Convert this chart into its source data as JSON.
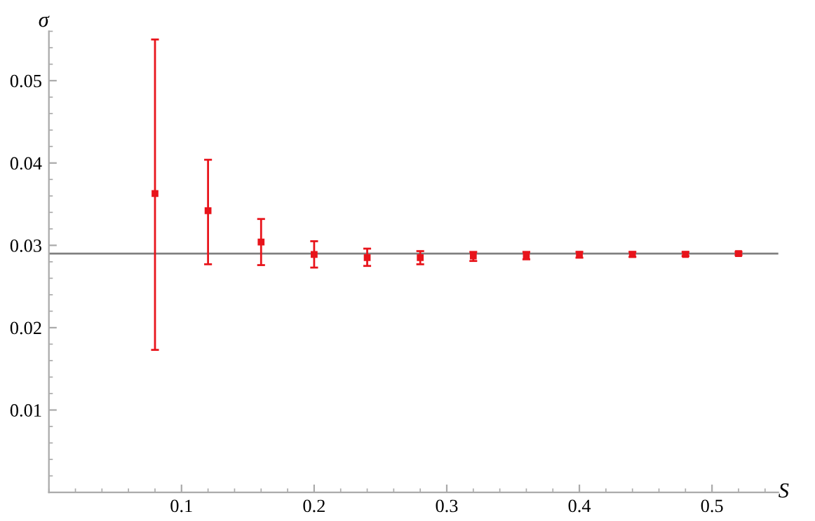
{
  "chart_data": {
    "type": "scatter",
    "xlabel": "S",
    "ylabel": "σ",
    "x": [
      0.08,
      0.12,
      0.16,
      0.2,
      0.24,
      0.28,
      0.32,
      0.36,
      0.4,
      0.44,
      0.48,
      0.52
    ],
    "series": [
      {
        "color": "#e8141b",
        "values": [
          0.0363,
          0.0342,
          0.0304,
          0.0289,
          0.0285,
          0.0285,
          0.0287,
          0.0288,
          0.0289,
          0.0289,
          0.0289,
          0.029
        ],
        "errors": [
          [
            0.0173,
            0.055
          ],
          [
            0.0277,
            0.0404
          ],
          [
            0.0276,
            0.0332
          ],
          [
            0.0273,
            0.0305
          ],
          [
            0.0275,
            0.0296
          ],
          [
            0.0277,
            0.0293
          ],
          [
            0.0281,
            0.0292
          ],
          [
            0.0283,
            0.0292
          ],
          [
            0.0285,
            0.0292
          ],
          [
            0.0286,
            0.0292
          ],
          [
            0.0287,
            0.0292
          ],
          [
            0.0288,
            0.0292
          ]
        ]
      }
    ],
    "marker": "square",
    "ref_lines": [
      {
        "axis": "y",
        "value": 0.029,
        "color": "#808080"
      }
    ],
    "xlim": [
      0,
      0.55
    ],
    "ylim": [
      0,
      0.056
    ],
    "xticks": [
      0.1,
      0.2,
      0.3,
      0.4,
      0.5
    ],
    "yticks": [
      0.01,
      0.02,
      0.03,
      0.04,
      0.05
    ],
    "grid": false,
    "legend": false
  }
}
